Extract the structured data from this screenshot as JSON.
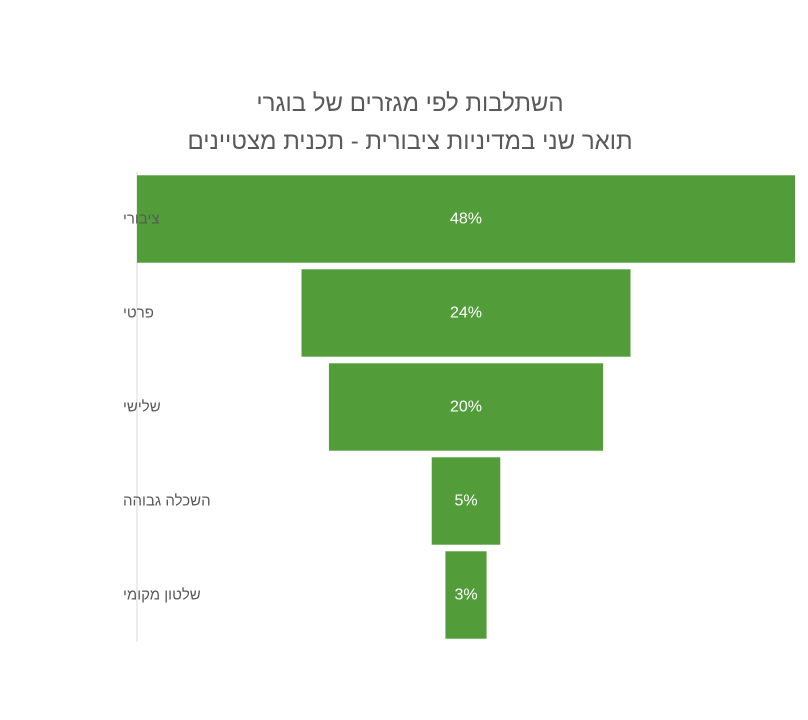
{
  "chart_data": {
    "type": "bar",
    "subtype": "funnel",
    "title_lines": [
      "השתלבות לפי מגזרים של בוגרי",
      "תואר שני במדיניות ציבורית - תכנית מצטיינים"
    ],
    "categories": [
      "ציבורי",
      "פרטי",
      "שלישי",
      "השכלה גבוהה",
      "שלטון מקומי"
    ],
    "values": [
      48,
      24,
      20,
      5,
      3
    ],
    "value_unit": "%",
    "data_labels": [
      "48%",
      "24%",
      "20%",
      "5%",
      "3%"
    ],
    "xlabel": "",
    "ylabel": "",
    "grid": false,
    "legend": "none",
    "colors": {
      "bar": "#529D3A",
      "label": "#FFFFFF",
      "axis_line": "#D9D9D9",
      "category_text": "#595959",
      "title_text": "#595959"
    }
  }
}
